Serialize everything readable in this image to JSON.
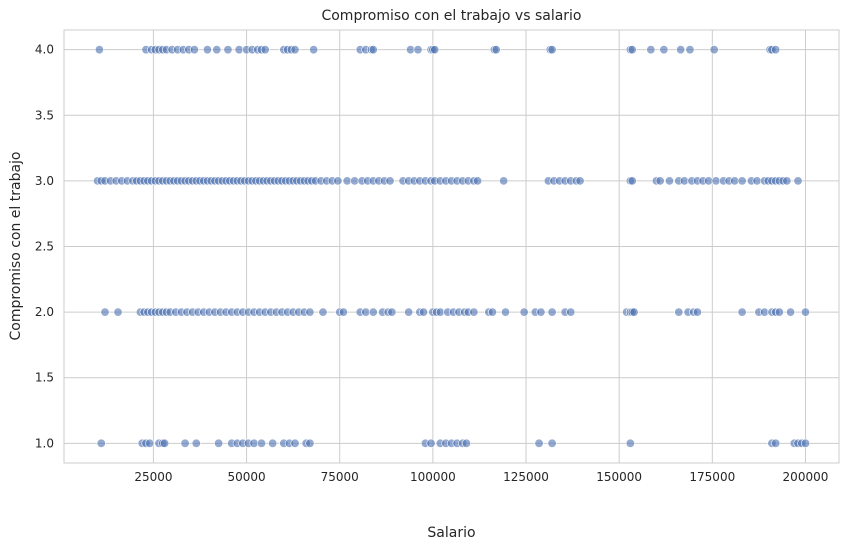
{
  "chart_data": {
    "type": "scatter",
    "title": "Compromiso con el trabajo vs salario",
    "xlabel": "Salario",
    "ylabel": "Compromiso con el trabajo",
    "xlim": [
      1000,
      209000
    ],
    "ylim": [
      0.85,
      4.15
    ],
    "xticks": [
      25000,
      50000,
      75000,
      100000,
      125000,
      150000,
      175000,
      200000
    ],
    "yticks": [
      1.0,
      1.5,
      2.0,
      2.5,
      3.0,
      3.5,
      4.0
    ],
    "ytick_labels": [
      "1.0",
      "1.5",
      "2.0",
      "2.5",
      "3.0",
      "3.5",
      "4.0"
    ],
    "grid": true,
    "point_color": "#4c72b0",
    "series": [
      {
        "y": 4.0,
        "x": [
          10500,
          23000,
          24500,
          25500,
          26500,
          27500,
          28500,
          30000,
          31500,
          33000,
          34500,
          36000,
          39500,
          42000,
          45000,
          48000,
          50000,
          51500,
          53000,
          54000,
          55000,
          60000,
          61000,
          62000,
          63000,
          68000,
          80500,
          82000,
          83500,
          84000,
          94000,
          96000,
          99500,
          100000,
          100500,
          116500,
          117000,
          131500,
          132000,
          153000,
          153500,
          158500,
          162000,
          166500,
          169000,
          175500,
          190500,
          191000,
          192000
        ]
      },
      {
        "y": 3.0,
        "x": [
          10000,
          11000,
          12000,
          13500,
          15000,
          16500,
          18000,
          19500,
          20500,
          21500,
          22500,
          23500,
          24500,
          25500,
          26500,
          27500,
          28500,
          29500,
          30500,
          31500,
          32500,
          33500,
          34500,
          35500,
          36500,
          37500,
          38500,
          39500,
          40500,
          41500,
          42500,
          43500,
          44500,
          45500,
          46500,
          47500,
          48500,
          49500,
          50500,
          51500,
          52500,
          53500,
          54500,
          55500,
          56500,
          57500,
          58500,
          59500,
          60500,
          61500,
          62500,
          63500,
          64500,
          65500,
          66500,
          67500,
          68500,
          70000,
          71500,
          73000,
          74500,
          77000,
          79000,
          81000,
          82500,
          84000,
          85500,
          87000,
          88500,
          92000,
          93500,
          95000,
          96500,
          98000,
          99500,
          100500,
          102000,
          103500,
          105000,
          106500,
          108000,
          109500,
          111000,
          112000,
          119000,
          131000,
          132500,
          134000,
          135500,
          137000,
          138500,
          139500,
          153000,
          153500,
          160000,
          161000,
          163500,
          166000,
          167500,
          169500,
          171000,
          172500,
          174000,
          176000,
          178000,
          179500,
          181000,
          183000,
          185500,
          187000,
          189000,
          190000,
          191000,
          192000,
          193000,
          194000,
          195000,
          198000
        ]
      },
      {
        "y": 2.0,
        "x": [
          12000,
          15500,
          21500,
          22500,
          23500,
          24500,
          25500,
          26500,
          27500,
          28500,
          29500,
          31000,
          32500,
          34000,
          35500,
          37000,
          38500,
          40000,
          41500,
          43000,
          44500,
          46000,
          47500,
          49000,
          50500,
          52000,
          53500,
          55000,
          56500,
          58000,
          59500,
          61000,
          62500,
          64000,
          65500,
          67000,
          70500,
          75000,
          76000,
          80500,
          82000,
          84000,
          86500,
          88000,
          89000,
          93500,
          96500,
          97500,
          100000,
          101000,
          102000,
          104000,
          105500,
          107000,
          108500,
          109500,
          111000,
          115000,
          116000,
          119500,
          124500,
          127500,
          129000,
          132000,
          135500,
          137000,
          152000,
          153000,
          153500,
          154000,
          166000,
          168500,
          170000,
          171000,
          183000,
          187500,
          189000,
          191000,
          192000,
          193000,
          196000,
          200000
        ]
      },
      {
        "y": 1.0,
        "x": [
          11000,
          22000,
          23000,
          24000,
          26500,
          27500,
          28000,
          33500,
          36500,
          42500,
          46000,
          47500,
          49000,
          50500,
          52000,
          54000,
          57000,
          60000,
          61500,
          63000,
          66000,
          67000,
          98000,
          99500,
          102000,
          103500,
          105000,
          106500,
          108000,
          109000,
          128500,
          132000,
          153000,
          191000,
          192000,
          197000,
          198000,
          199000,
          200000
        ]
      }
    ]
  }
}
